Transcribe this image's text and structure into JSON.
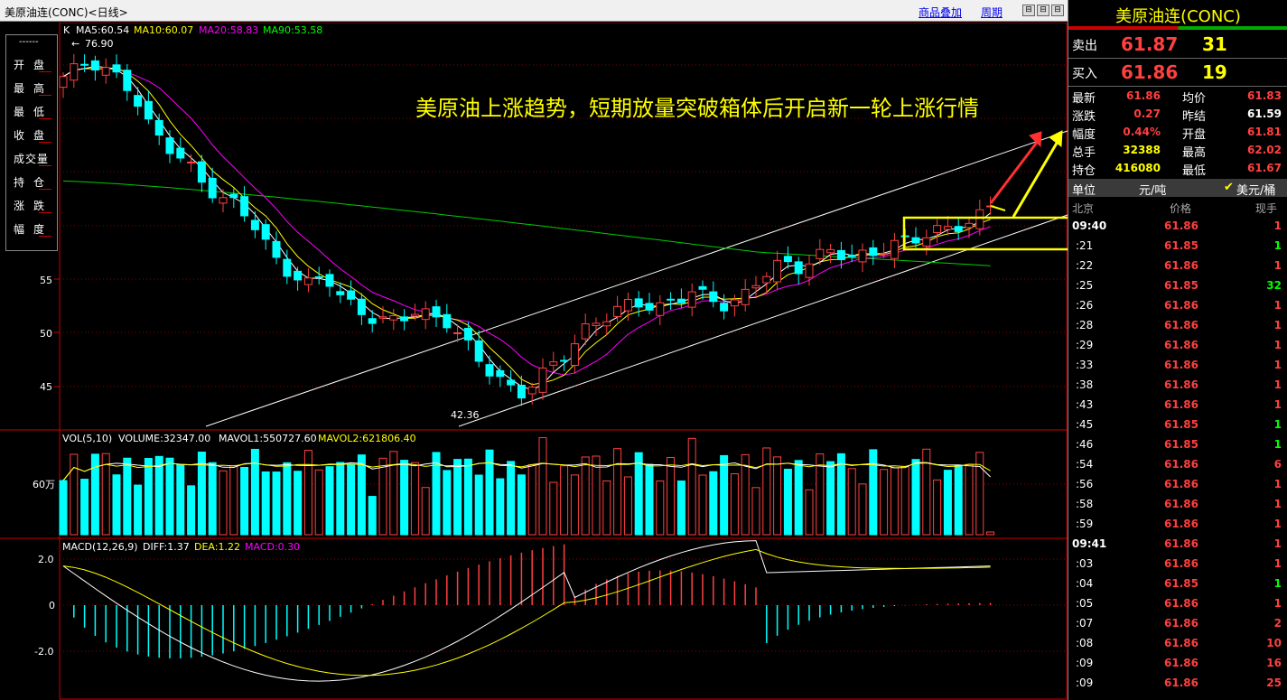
{
  "window": {
    "title": "美原油连(CONC)<日线>",
    "overlay_label": "商品叠加",
    "period_label": "周期",
    "nav_buttons": [
      "⊟",
      "⊟",
      "⊟"
    ]
  },
  "annotation": "美原油上涨趋势，短期放量突破箱体后开启新一轮上涨行情",
  "left_panel": {
    "top": "------",
    "rows": [
      "开盘",
      "最高",
      "最低",
      "收盘",
      "成交量",
      "持仓",
      "涨跌",
      "幅度"
    ]
  },
  "main_chart": {
    "indicator_label": "K",
    "ma": [
      {
        "label": "MA5:60.54",
        "color": "#ffffff"
      },
      {
        "label": "MA10:60.07",
        "color": "#ffff00"
      },
      {
        "label": "MA20:58.83",
        "color": "#ff00ff"
      },
      {
        "label": "MA90:53.58",
        "color": "#00ff00"
      }
    ],
    "high_mark": "76.90",
    "low_mark": "42.36",
    "y_ticks": [
      "55",
      "50",
      "45"
    ]
  },
  "volume_chart": {
    "header": "VOL(5,10) VOLUME:32347.00 MAVOL1:550727.60 MAVOL2:621806.40",
    "header_parts": [
      "VOL(5,10)",
      "VOLUME:32347.00",
      "MAVOL1:550727.60",
      "MAVOL2:621806.40"
    ],
    "y_tick": "60万"
  },
  "macd_chart": {
    "header_parts": [
      "MACD(12,26,9)",
      "DIFF:1.37",
      "DEA:1.22",
      "MACD:0.30"
    ],
    "y_ticks": [
      "2.0",
      "0",
      "-2.0"
    ]
  },
  "chart_data": [
    {
      "type": "candlestick",
      "title": "美原油连(CONC)<日线>",
      "high": 76.9,
      "low": 42.36,
      "y_ticks": [
        55,
        50,
        45
      ],
      "ma": {
        "MA5": 60.54,
        "MA10": 60.07,
        "MA20": 58.83,
        "MA90": 53.58
      },
      "trend": "down from 76.90 to 42.36 then uptrend channel to 61.86"
    },
    {
      "type": "bar",
      "title": "VOL(5,10)",
      "volume": 32347.0,
      "mavol1": 550727.6,
      "mavol2": 621806.4
    },
    {
      "type": "line",
      "title": "MACD(12,26,9)",
      "diff": 1.37,
      "dea": 1.22,
      "macd": 0.3,
      "y_ticks": [
        2.0,
        0,
        -2.0
      ]
    }
  ],
  "quote": {
    "name": "美原油连(CONC)",
    "sell": {
      "label": "卖出",
      "price": "61.87",
      "vol": "31"
    },
    "buy": {
      "label": "买入",
      "price": "61.86",
      "vol": "19"
    },
    "stats": [
      {
        "l1": "最新",
        "v1": "61.86",
        "c1": "#ff4040",
        "l2": "均价",
        "v2": "61.83",
        "c2": "#ff4040"
      },
      {
        "l1": "涨跌",
        "v1": "0.27",
        "c1": "#ff4040",
        "l2": "昨结",
        "v2": "61.59",
        "c2": "#ffffff"
      },
      {
        "l1": "幅度",
        "v1": "0.44%",
        "c1": "#ff4040",
        "l2": "开盘",
        "v2": "61.81",
        "c2": "#ff4040"
      },
      {
        "l1": "总手",
        "v1": "32388",
        "c1": "#ffff00",
        "l2": "最高",
        "v2": "62.02",
        "c2": "#ff4040"
      },
      {
        "l1": "持仓",
        "v1": "416080",
        "c1": "#ffff00",
        "l2": "最低",
        "v2": "61.67",
        "c2": "#ff4040"
      }
    ],
    "unit_label": "单位",
    "unit": "元/吨",
    "currency": "美元/桶",
    "headers": [
      "北京",
      "价格",
      "现手"
    ],
    "ticks": [
      {
        "t": "09:40",
        "p": "61.86",
        "v": "1",
        "vc": "#ff4040",
        "bold": true
      },
      {
        "t": ":21",
        "p": "61.85",
        "v": "1",
        "vc": "#00ff00"
      },
      {
        "t": ":22",
        "p": "61.86",
        "v": "1",
        "vc": "#ff4040"
      },
      {
        "t": ":25",
        "p": "61.85",
        "v": "32",
        "vc": "#00ff00"
      },
      {
        "t": ":26",
        "p": "61.86",
        "v": "1",
        "vc": "#ff4040"
      },
      {
        "t": ":28",
        "p": "61.86",
        "v": "1",
        "vc": "#ff4040"
      },
      {
        "t": ":29",
        "p": "61.86",
        "v": "1",
        "vc": "#ff4040"
      },
      {
        "t": ":33",
        "p": "61.86",
        "v": "1",
        "vc": "#ff4040"
      },
      {
        "t": ":38",
        "p": "61.86",
        "v": "1",
        "vc": "#ff4040"
      },
      {
        "t": ":43",
        "p": "61.86",
        "v": "1",
        "vc": "#ff4040"
      },
      {
        "t": ":45",
        "p": "61.85",
        "v": "1",
        "vc": "#00ff00"
      },
      {
        "t": ":46",
        "p": "61.85",
        "v": "1",
        "vc": "#00ff00"
      },
      {
        "t": ":54",
        "p": "61.86",
        "v": "6",
        "vc": "#ff4040"
      },
      {
        "t": ":56",
        "p": "61.86",
        "v": "1",
        "vc": "#ff4040"
      },
      {
        "t": ":58",
        "p": "61.86",
        "v": "1",
        "vc": "#ff4040"
      },
      {
        "t": ":59",
        "p": "61.86",
        "v": "1",
        "vc": "#ff4040"
      },
      {
        "t": "09:41",
        "p": "61.86",
        "v": "1",
        "vc": "#ff4040",
        "bold": true
      },
      {
        "t": ":03",
        "p": "61.86",
        "v": "1",
        "vc": "#ff4040"
      },
      {
        "t": ":04",
        "p": "61.85",
        "v": "1",
        "vc": "#00ff00"
      },
      {
        "t": ":05",
        "p": "61.86",
        "v": "1",
        "vc": "#ff4040"
      },
      {
        "t": ":07",
        "p": "61.86",
        "v": "2",
        "vc": "#ff4040"
      },
      {
        "t": ":08",
        "p": "61.86",
        "v": "10",
        "vc": "#ff4040"
      },
      {
        "t": ":09",
        "p": "61.86",
        "v": "16",
        "vc": "#ff4040"
      },
      {
        "t": ":09",
        "p": "61.86",
        "v": "25",
        "vc": "#ff4040"
      }
    ]
  }
}
